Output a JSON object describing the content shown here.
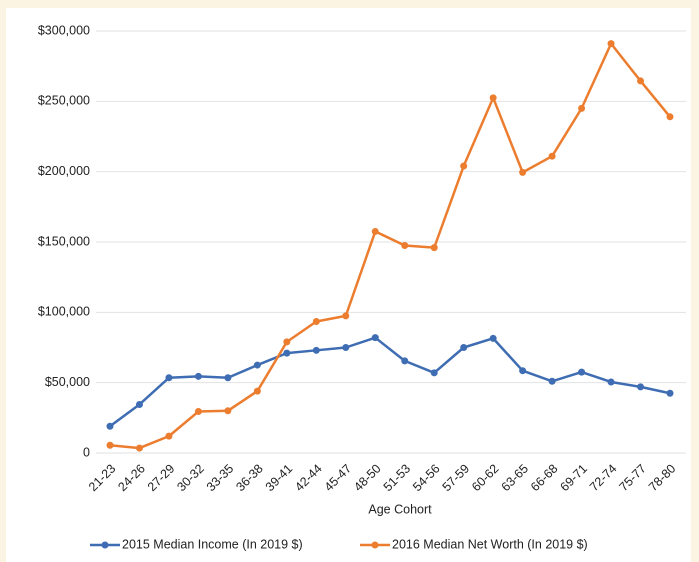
{
  "chart_data": {
    "type": "line",
    "x_label": "Age Cohort",
    "categories": [
      "21-23",
      "24-26",
      "27-29",
      "30-32",
      "33-35",
      "36-38",
      "39-41",
      "42-44",
      "45-47",
      "48-50",
      "51-53",
      "54-56",
      "57-59",
      "60-62",
      "63-65",
      "66-68",
      "69-71",
      "72-74",
      "75-77",
      "78-80"
    ],
    "series": [
      {
        "name": "2015 Median Income (In 2019 $)",
        "color": "#3f6db3",
        "values": [
          19000,
          34500,
          53500,
          54500,
          53500,
          62500,
          71000,
          73000,
          75000,
          82000,
          65500,
          57000,
          75000,
          81500,
          58500,
          51000,
          57500,
          50500,
          47000,
          42500
        ]
      },
      {
        "name": "2016 Median Net Worth (In 2019 $)",
        "color": "#ec7d2f",
        "values": [
          5500,
          3500,
          12000,
          29500,
          30000,
          44000,
          79000,
          93500,
          97500,
          157500,
          147500,
          146000,
          204000,
          252500,
          199500,
          211000,
          245000,
          291000,
          264500,
          239000
        ]
      }
    ],
    "ylim": [
      0,
      300000
    ],
    "yticks": [
      0,
      {
        "value": 50000,
        "label": "$50,000"
      },
      {
        "value": 100000,
        "label": "$100,000"
      },
      {
        "value": 150000,
        "label": "$150,000"
      },
      {
        "value": 200000,
        "label": "$200,000"
      },
      {
        "value": 250000,
        "label": "$250,000"
      },
      {
        "value": 300000,
        "label": "$300,000"
      }
    ],
    "grid": true,
    "legend": "bottom"
  }
}
